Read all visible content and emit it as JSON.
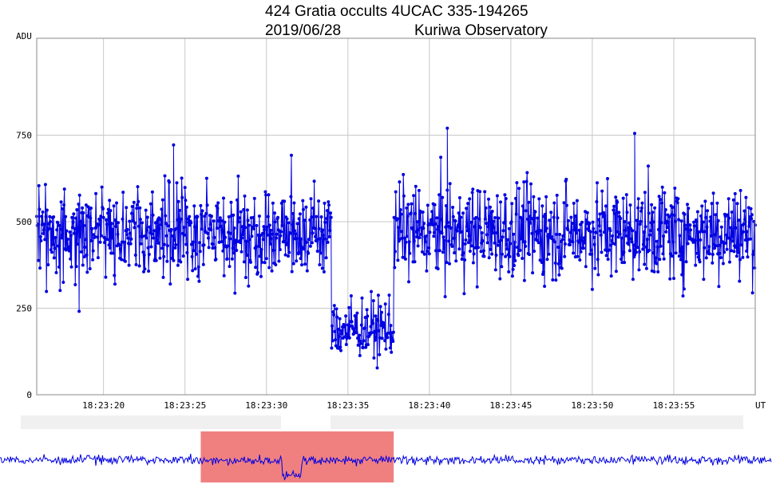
{
  "title_line1": "424 Gratia occults 4UCAC 335-194265",
  "title_date": "2019/06/28",
  "title_observatory": "Kuriwa Observatory",
  "colors": {
    "series": "#0000e0",
    "grid": "#c8c8c8",
    "frame": "#000000",
    "overview_highlight": "#f08080",
    "scrollbar": "#f0f0f0"
  },
  "chart_data": {
    "type": "line",
    "xlabel": "UT",
    "ylabel": "ADU",
    "x_range": [
      "18:23:15.9",
      "18:24:00.0"
    ],
    "ylim": [
      0,
      1030
    ],
    "y_ticks": [
      0,
      250,
      500,
      750
    ],
    "x_ticks": [
      "18:23:20",
      "18:23:25",
      "18:23:30",
      "18:23:35",
      "18:23:40",
      "18:23:45",
      "18:23:50",
      "18:23:55"
    ],
    "grid": true,
    "markers": true,
    "series": [
      {
        "baseline_mean_adu": 470,
        "occultation_start": "18:23:34.0",
        "occultation_end": "18:23:37.8",
        "occultation_mean_adu": 190,
        "sample_rate_per_s": 30,
        "notable_peaks": [
          {
            "x": "18:23:41.1",
            "y": 770
          },
          {
            "x": "18:23:52.6",
            "y": 755
          },
          {
            "x": "18:23:24.3",
            "y": 722
          }
        ]
      }
    ]
  },
  "overview": {
    "highlight_start_frac": 0.26,
    "highlight_end_frac": 0.51
  }
}
